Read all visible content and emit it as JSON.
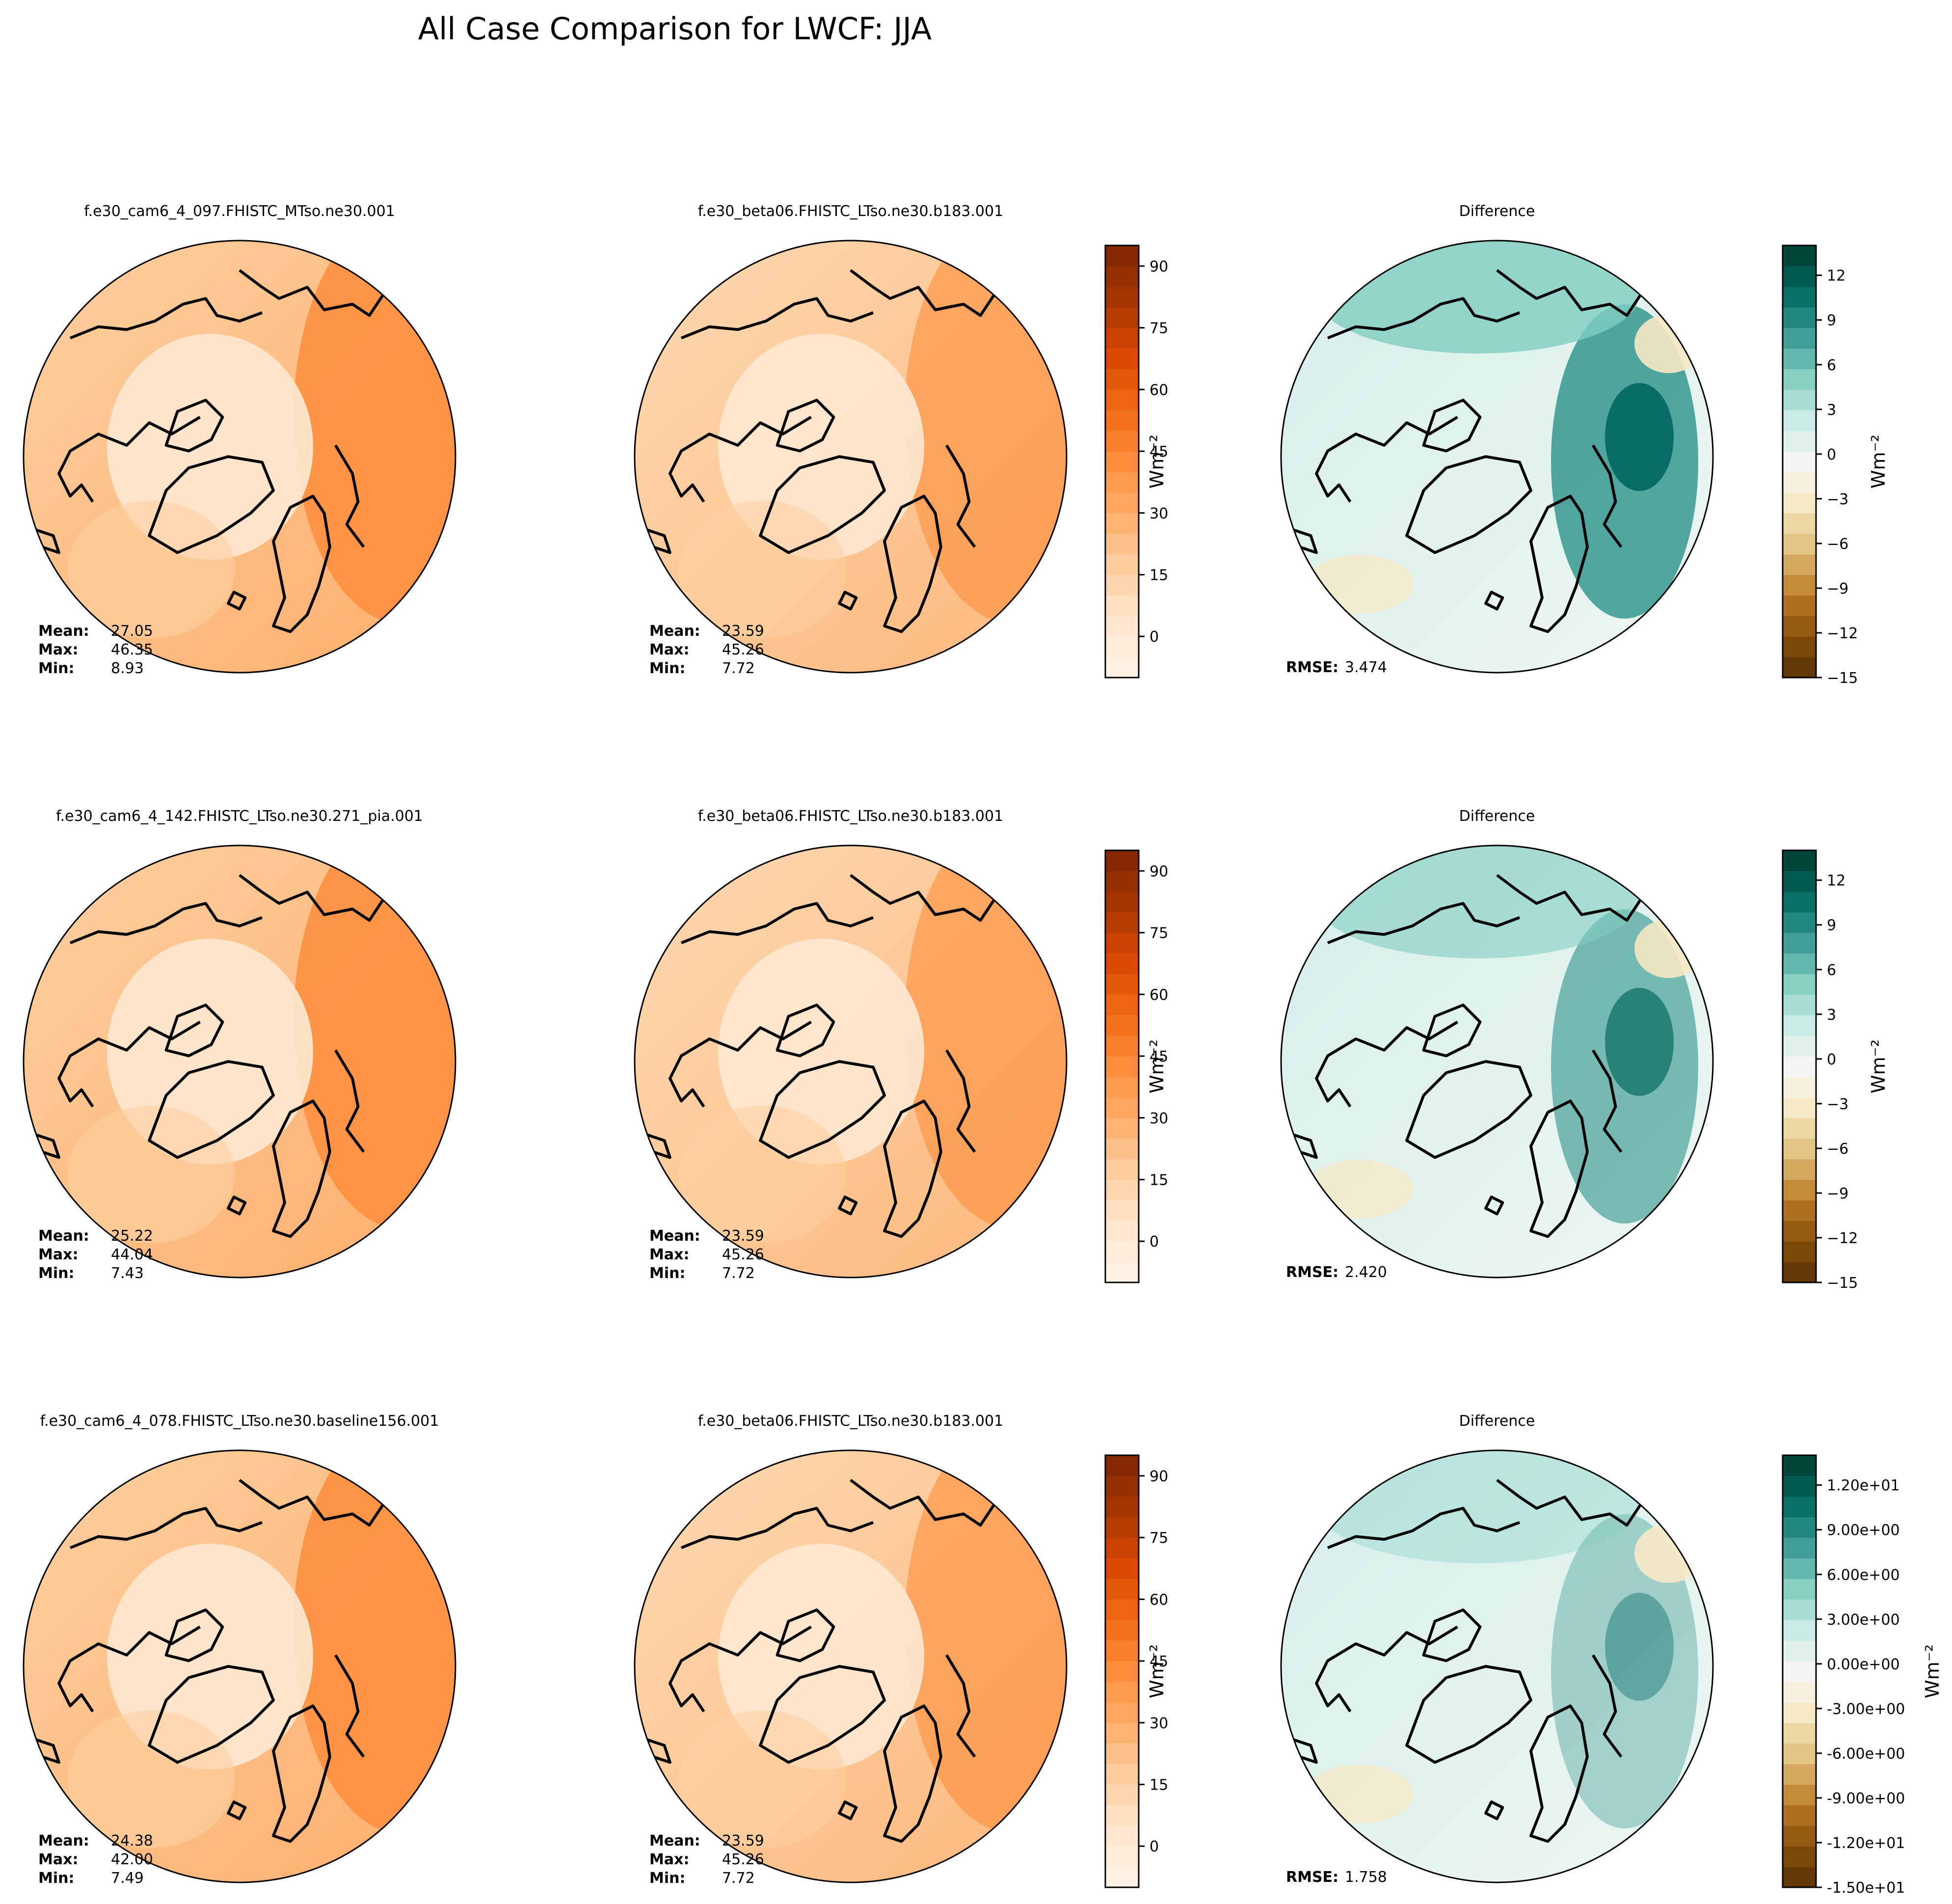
{
  "figure": {
    "title": "All Case Comparison for LWCF: JJA"
  },
  "colorbar_label": "Wm⁻²",
  "colors": {
    "orange_ramp": [
      "#fff5eb",
      "#fee6ce",
      "#fdd0a2",
      "#fdae6b",
      "#fd8d3c",
      "#f16913",
      "#d94801",
      "#a63603",
      "#7f2704"
    ],
    "diff_ramp": [
      "#543005",
      "#8c510a",
      "#bf812d",
      "#dfc27d",
      "#f6e8c3",
      "#f5f5f5",
      "#c7eae5",
      "#80cdc1",
      "#35978f",
      "#01665e",
      "#003c30"
    ]
  },
  "rows": [
    {
      "test": {
        "title": "f.e30_cam6_4_097.FHISTC_MTso.ne30.001",
        "mean_label": "Mean:",
        "mean": "27.05",
        "max_label": "Max:",
        "max": "46.35",
        "min_label": "Min:",
        "min": "8.93"
      },
      "baseline": {
        "title": "f.e30_beta06.FHISTC_LTso.ne30.b183.001",
        "mean_label": "Mean:",
        "mean": "23.59",
        "max_label": "Max:",
        "max": "45.26",
        "min_label": "Min:",
        "min": "7.72"
      },
      "diff": {
        "title": "Difference",
        "rmse_label": "RMSE:",
        "rmse": "3.474"
      }
    },
    {
      "test": {
        "title": "f.e30_cam6_4_142.FHISTC_LTso.ne30.271_pia.001",
        "mean_label": "Mean:",
        "mean": "25.22",
        "max_label": "Max:",
        "max": "44.04",
        "min_label": "Min:",
        "min": "7.43"
      },
      "baseline": {
        "title": "f.e30_beta06.FHISTC_LTso.ne30.b183.001",
        "mean_label": "Mean:",
        "mean": "23.59",
        "max_label": "Max:",
        "max": "45.26",
        "min_label": "Min:",
        "min": "7.72"
      },
      "diff": {
        "title": "Difference",
        "rmse_label": "RMSE:",
        "rmse": "2.420"
      }
    },
    {
      "test": {
        "title": "f.e30_cam6_4_078.FHISTC_LTso.ne30.baseline156.001",
        "mean_label": "Mean:",
        "mean": "24.38",
        "max_label": "Max:",
        "max": "42.00",
        "min_label": "Min:",
        "min": "7.49"
      },
      "baseline": {
        "title": "f.e30_beta06.FHISTC_LTso.ne30.b183.001",
        "mean_label": "Mean:",
        "mean": "23.59",
        "max_label": "Max:",
        "max": "45.26",
        "min_label": "Min:",
        "min": "7.72"
      },
      "diff": {
        "title": "Difference",
        "rmse_label": "RMSE:",
        "rmse": "1.758"
      }
    }
  ],
  "colorbars": {
    "field": {
      "range": [
        -10,
        95
      ],
      "ticks": [
        "90",
        "75",
        "60",
        "45",
        "30",
        "15",
        "0"
      ],
      "tick_values": [
        90,
        75,
        60,
        45,
        30,
        15,
        0
      ]
    },
    "diff_rows_1_2": {
      "range": [
        -15,
        14
      ],
      "ticks": [
        "12",
        "9",
        "6",
        "3",
        "0",
        "−3",
        "−6",
        "−9",
        "−12",
        "−15"
      ],
      "tick_values": [
        12,
        9,
        6,
        3,
        0,
        -3,
        -6,
        -9,
        -12,
        -15
      ]
    },
    "diff_row_3": {
      "range": [
        -15,
        14
      ],
      "ticks": [
        "1.20e+01",
        "9.00e+00",
        "6.00e+00",
        "3.00e+00",
        "0.00e+00",
        "-3.00e+00",
        "-6.00e+00",
        "-9.00e+00",
        "-1.20e+01",
        "-1.50e+01"
      ],
      "tick_values": [
        12,
        9,
        6,
        3,
        0,
        -3,
        -6,
        -9,
        -12,
        -15
      ]
    }
  },
  "chart_data": {
    "type": "heatmap",
    "title": "All Case Comparison for LWCF: JJA",
    "variable": "LWCF",
    "season": "JJA",
    "units": "Wm⁻²",
    "projection": "North Polar Stereographic",
    "panels": [
      {
        "row": 1,
        "kind": "test",
        "case": "f.e30_cam6_4_097.FHISTC_MTso.ne30.001",
        "mean": 27.05,
        "max": 46.35,
        "min": 8.93
      },
      {
        "row": 1,
        "kind": "baseline",
        "case": "f.e30_beta06.FHISTC_LTso.ne30.b183.001",
        "mean": 23.59,
        "max": 45.26,
        "min": 7.72
      },
      {
        "row": 1,
        "kind": "difference",
        "rmse": 3.474
      },
      {
        "row": 2,
        "kind": "test",
        "case": "f.e30_cam6_4_142.FHISTC_LTso.ne30.271_pia.001",
        "mean": 25.22,
        "max": 44.04,
        "min": 7.43
      },
      {
        "row": 2,
        "kind": "baseline",
        "case": "f.e30_beta06.FHISTC_LTso.ne30.b183.001",
        "mean": 23.59,
        "max": 45.26,
        "min": 7.72
      },
      {
        "row": 2,
        "kind": "difference",
        "rmse": 2.42
      },
      {
        "row": 3,
        "kind": "test",
        "case": "f.e30_cam6_4_078.FHISTC_LTso.ne30.baseline156.001",
        "mean": 24.38,
        "max": 42.0,
        "min": 7.49
      },
      {
        "row": 3,
        "kind": "baseline",
        "case": "f.e30_beta06.FHISTC_LTso.ne30.b183.001",
        "mean": 23.59,
        "max": 45.26,
        "min": 7.72
      },
      {
        "row": 3,
        "kind": "difference",
        "rmse": 1.758
      }
    ],
    "field_colorbar_range": [
      -10,
      95
    ],
    "diff_colorbar_range": [
      -15,
      14
    ]
  }
}
